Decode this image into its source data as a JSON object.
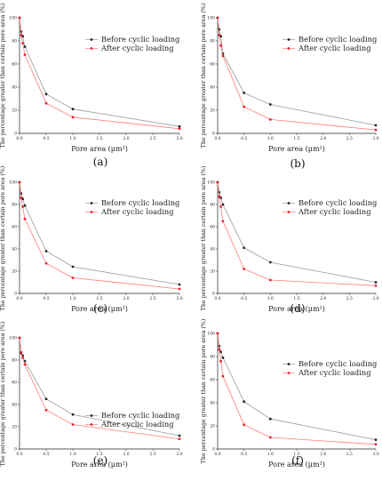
{
  "figure": {
    "ylabel": "The percentage greater than certain pore area (%)",
    "xlabel": "Pore area (μm²)",
    "series_names": [
      "Before cyclic loading",
      "After cyclic loading"
    ],
    "colors": {
      "before": "#222222",
      "after": "#e8202a",
      "before_line": "#9a9a9a",
      "after_line": "#ff7a7a"
    }
  },
  "chart_data": [
    {
      "type": "line",
      "panel_label": "(a)",
      "xlim": [
        0,
        3
      ],
      "ylim": [
        0,
        100
      ],
      "x_ticks": [
        0.0,
        0.5,
        1.0,
        1.5,
        2.0,
        2.5,
        3.0
      ],
      "y_ticks": [
        0,
        20,
        40,
        60,
        80,
        100
      ],
      "legend": "upper-right",
      "series": [
        {
          "name": "Before cyclic loading",
          "x": [
            0.0,
            0.03,
            0.06,
            0.1,
            0.5,
            1.0,
            3.0
          ],
          "y": [
            100,
            88,
            84,
            75,
            34,
            21,
            6
          ]
        },
        {
          "name": "After cyclic loading",
          "x": [
            0.0,
            0.03,
            0.06,
            0.1,
            0.5,
            1.0,
            3.0
          ],
          "y": [
            100,
            85,
            78,
            68,
            26,
            14,
            4
          ]
        }
      ]
    },
    {
      "type": "line",
      "panel_label": "(b)",
      "xlim": [
        0,
        3
      ],
      "ylim": [
        0,
        100
      ],
      "x_ticks": [
        0.0,
        0.5,
        1.0,
        1.5,
        2.0,
        2.5,
        3.0
      ],
      "y_ticks": [
        0,
        20,
        40,
        60,
        80,
        100
      ],
      "legend": "upper-right",
      "series": [
        {
          "name": "Before cyclic loading",
          "x": [
            0.0,
            0.03,
            0.06,
            0.1,
            0.5,
            1.0,
            3.0
          ],
          "y": [
            100,
            90,
            84,
            69,
            35,
            25,
            7
          ]
        },
        {
          "name": "After cyclic loading",
          "x": [
            0.0,
            0.03,
            0.06,
            0.1,
            0.5,
            1.0,
            3.0
          ],
          "y": [
            100,
            85,
            76,
            67,
            23,
            12,
            3
          ]
        }
      ]
    },
    {
      "type": "line",
      "panel_label": "(c)",
      "xlim": [
        0,
        3
      ],
      "ylim": [
        0,
        100
      ],
      "x_ticks": [
        0.0,
        0.5,
        1.0,
        1.5,
        2.0,
        2.5,
        3.0
      ],
      "y_ticks": [
        0,
        20,
        40,
        60,
        80,
        100
      ],
      "legend": "upper-right",
      "series": [
        {
          "name": "Before cyclic loading",
          "x": [
            0.0,
            0.03,
            0.06,
            0.1,
            0.5,
            1.0,
            3.0
          ],
          "y": [
            100,
            90,
            85,
            79,
            38,
            24,
            8
          ]
        },
        {
          "name": "After cyclic loading",
          "x": [
            0.0,
            0.03,
            0.06,
            0.1,
            0.5,
            1.0,
            3.0
          ],
          "y": [
            100,
            86,
            78,
            67,
            27,
            14,
            4
          ]
        }
      ]
    },
    {
      "type": "line",
      "panel_label": "(d)",
      "xlim": [
        0,
        3
      ],
      "ylim": [
        0,
        100
      ],
      "x_ticks": [
        0.0,
        0.5,
        1.0,
        1.5,
        2.0,
        2.5,
        3.0
      ],
      "y_ticks": [
        0,
        20,
        40,
        60,
        80,
        100
      ],
      "legend": "upper-right",
      "series": [
        {
          "name": "Before cyclic loading",
          "x": [
            0.0,
            0.03,
            0.06,
            0.1,
            0.5,
            1.0,
            3.0
          ],
          "y": [
            100,
            91,
            86,
            80,
            41,
            28,
            10
          ]
        },
        {
          "name": "After cyclic loading",
          "x": [
            0.0,
            0.03,
            0.06,
            0.1,
            0.5,
            1.0,
            3.0
          ],
          "y": [
            100,
            87,
            78,
            65,
            22,
            12,
            7
          ]
        }
      ]
    },
    {
      "type": "line",
      "panel_label": "(e)",
      "xlim": [
        0,
        3
      ],
      "ylim": [
        0,
        100
      ],
      "x_ticks": [
        0.0,
        0.5,
        1.0,
        1.5,
        2.0,
        2.5,
        3.0
      ],
      "y_ticks": [
        0,
        20,
        40,
        60,
        80,
        100
      ],
      "legend": "center-right",
      "series": [
        {
          "name": "Before cyclic loading",
          "x": [
            0.0,
            0.03,
            0.06,
            0.1,
            0.5,
            1.0,
            3.0
          ],
          "y": [
            100,
            87,
            84,
            79,
            45,
            31,
            12
          ]
        },
        {
          "name": "After cyclic loading",
          "x": [
            0.0,
            0.03,
            0.06,
            0.1,
            0.5,
            1.0,
            3.0
          ],
          "y": [
            100,
            86,
            82,
            76,
            35,
            22,
            9
          ]
        }
      ]
    },
    {
      "type": "line",
      "panel_label": "(f)",
      "xlim": [
        0,
        3
      ],
      "ylim": [
        0,
        100
      ],
      "x_ticks": [
        0.0,
        0.5,
        1.0,
        1.5,
        2.0,
        2.5,
        3.0
      ],
      "y_ticks": [
        0,
        20,
        40,
        60,
        80,
        100
      ],
      "legend": "upper-right",
      "series": [
        {
          "name": "Before cyclic loading",
          "x": [
            0.0,
            0.03,
            0.06,
            0.1,
            0.5,
            1.0,
            3.0
          ],
          "y": [
            100,
            89,
            84,
            79,
            41,
            26,
            8
          ]
        },
        {
          "name": "After cyclic loading",
          "x": [
            0.0,
            0.03,
            0.06,
            0.1,
            0.5,
            1.0,
            3.0
          ],
          "y": [
            100,
            86,
            76,
            63,
            21,
            10,
            4
          ]
        }
      ]
    }
  ]
}
